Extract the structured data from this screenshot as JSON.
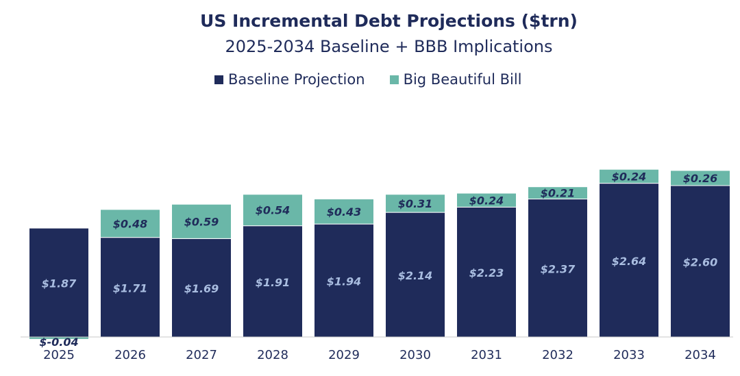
{
  "chart_data": {
    "type": "bar",
    "stacked": true,
    "title": "US Incremental Debt Projections ($trn)",
    "subtitle": "2025-2034 Baseline + BBB Implications",
    "categories": [
      "2025",
      "2026",
      "2027",
      "2028",
      "2029",
      "2030",
      "2031",
      "2032",
      "2033",
      "2034"
    ],
    "series": [
      {
        "name": "Baseline Projection",
        "color": "#1f2b5a",
        "values": [
          1.87,
          1.71,
          1.69,
          1.91,
          1.94,
          2.14,
          2.23,
          2.37,
          2.64,
          2.6
        ],
        "labels": [
          "$1.87",
          "$1.71",
          "$1.69",
          "$1.91",
          "$1.94",
          "$2.14",
          "$2.23",
          "$2.37",
          "$2.64",
          "$2.60"
        ]
      },
      {
        "name": "Big Beautiful Bill",
        "color": "#6ab7a8",
        "values": [
          -0.04,
          0.48,
          0.59,
          0.54,
          0.43,
          0.31,
          0.24,
          0.21,
          0.24,
          0.26
        ],
        "labels": [
          "$-0.04",
          "$0.48",
          "$0.59",
          "$0.54",
          "$0.43",
          "$0.31",
          "$0.24",
          "$0.21",
          "$0.24",
          "$0.26"
        ]
      }
    ],
    "ylim": [
      -0.1,
      3.0
    ],
    "legend_position": "top",
    "grid": false
  }
}
